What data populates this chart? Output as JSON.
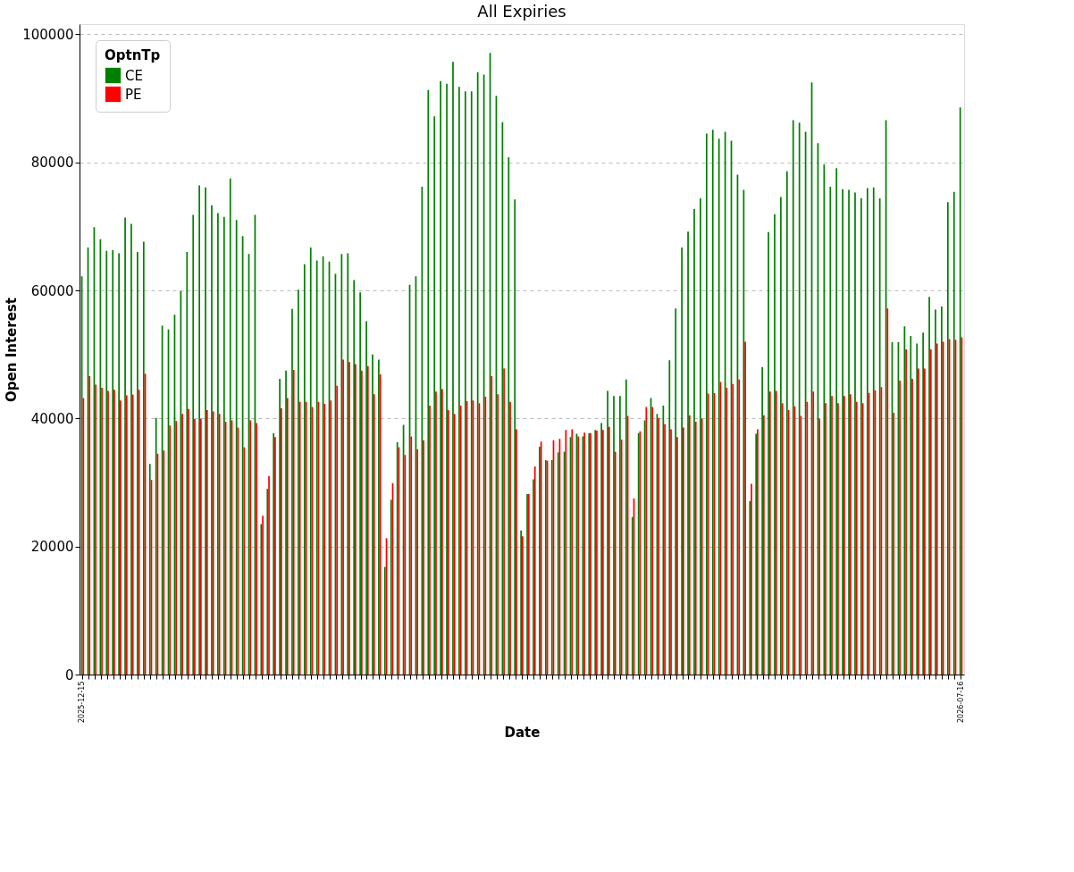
{
  "chart_data": {
    "type": "bar",
    "title": "All Expiries",
    "xlabel": "Date",
    "ylabel": "Open Interest",
    "legend_title": "OptnTp",
    "categories": [
      "2025-12-15",
      null,
      null,
      null,
      null,
      null,
      null,
      null,
      null,
      null,
      null,
      null,
      null,
      null,
      null,
      null,
      null,
      null,
      null,
      null,
      null,
      null,
      null,
      null,
      null,
      null,
      null,
      null,
      null,
      null,
      null,
      null,
      null,
      null,
      null,
      null,
      null,
      null,
      null,
      null,
      null,
      null,
      null,
      null,
      null,
      null,
      null,
      null,
      null,
      null,
      null,
      null,
      null,
      null,
      null,
      null,
      null,
      null,
      null,
      null,
      null,
      null,
      null,
      null,
      null,
      null,
      null,
      null,
      null,
      null,
      null,
      null,
      null,
      null,
      null,
      null,
      null,
      null,
      null,
      null,
      null,
      null,
      null,
      null,
      null,
      null,
      null,
      null,
      null,
      null,
      null,
      null,
      null,
      null,
      null,
      null,
      null,
      null,
      null,
      null,
      null,
      null,
      null,
      null,
      null,
      null,
      null,
      null,
      null,
      null,
      null,
      null,
      null,
      null,
      null,
      null,
      null,
      null,
      null,
      null,
      null,
      null,
      null,
      null,
      null,
      null,
      null,
      null,
      null,
      null,
      null,
      null,
      null,
      null,
      null,
      null,
      null,
      null,
      null,
      null,
      null,
      null,
      "2026-07-16"
    ],
    "series": [
      {
        "name": "CE",
        "color": "#008000",
        "values": [
          62200,
          66700,
          69900,
          68000,
          66200,
          66300,
          65800,
          71400,
          70400,
          66000,
          67600,
          32900,
          40100,
          54500,
          53900,
          56200,
          59900,
          66000,
          71800,
          76400,
          76100,
          73300,
          72100,
          71500,
          77500,
          71000,
          68500,
          65700,
          71800,
          23500,
          29000,
          37700,
          46200,
          47500,
          57100,
          60100,
          64100,
          66700,
          64700,
          65300,
          64500,
          62600,
          65700,
          65800,
          61600,
          59700,
          55200,
          50000,
          49200,
          16800,
          27300,
          36300,
          39000,
          60900,
          62200,
          76200,
          91300,
          87200,
          92700,
          92300,
          95700,
          91800,
          91100,
          91100,
          94100,
          93700,
          97100,
          90400,
          86300,
          80800,
          74200,
          22500,
          28200,
          30500,
          35600,
          33500,
          33500,
          34700,
          34800,
          37100,
          37600,
          37200,
          37700,
          38200,
          39300,
          44300,
          43500,
          43500,
          46100,
          24600,
          37700,
          39700,
          43200,
          40700,
          42000,
          49100,
          57200,
          66700,
          69200,
          72700,
          74400,
          84500,
          85100,
          83700,
          84800,
          83400,
          78100,
          75700,
          27100,
          37600,
          48000,
          69100,
          71900,
          74600,
          78600,
          86600,
          86200,
          84800,
          92500,
          83000,
          79700,
          76200,
          79100,
          75800,
          75700,
          75300,
          74400,
          76000,
          76100,
          74400,
          86600,
          51900,
          51900,
          54400,
          52900,
          51700,
          53400,
          59000,
          57000,
          57500,
          73800,
          75400,
          88600
        ]
      },
      {
        "name": "PE",
        "color": "#ff0000",
        "values": [
          43200,
          46600,
          45300,
          44800,
          44300,
          44500,
          42800,
          43600,
          43700,
          44500,
          47000,
          30400,
          34500,
          35000,
          38900,
          39600,
          40700,
          41500,
          39900,
          40000,
          41300,
          41100,
          40700,
          39500,
          39700,
          38600,
          35500,
          39700,
          39300,
          24800,
          31000,
          37100,
          41600,
          43200,
          47600,
          42600,
          42600,
          41800,
          42600,
          42300,
          42800,
          45100,
          49200,
          48800,
          48500,
          47500,
          48200,
          43800,
          46900,
          21300,
          29900,
          35500,
          34300,
          37200,
          35200,
          36600,
          42000,
          44200,
          44600,
          41300,
          40700,
          42000,
          42700,
          42800,
          42400,
          43400,
          46600,
          43800,
          47800,
          42600,
          38300,
          21600,
          28200,
          32500,
          36400,
          33400,
          36600,
          36800,
          38200,
          38300,
          37200,
          37800,
          37700,
          38100,
          38200,
          38700,
          34800,
          36700,
          40400,
          27500,
          38000,
          41800,
          41800,
          40100,
          39100,
          38300,
          37100,
          38600,
          40500,
          39500,
          40000,
          43900,
          44000,
          45700,
          44800,
          45400,
          46100,
          52000,
          29800,
          38300,
          40500,
          44200,
          44300,
          42400,
          41300,
          41900,
          40400,
          42600,
          44200,
          40000,
          42400,
          43500,
          42400,
          43500,
          43800,
          42600,
          42400,
          44000,
          44400,
          44900,
          57200,
          40900,
          45900,
          50800,
          46200,
          47800,
          47800,
          50800,
          51700,
          52000,
          52400,
          52300,
          52700
        ]
      }
    ],
    "ylim": [
      0,
      101600
    ],
    "yticks": [
      0,
      20000,
      40000,
      60000,
      80000,
      100000
    ],
    "grid": "y",
    "legend": "top left"
  }
}
